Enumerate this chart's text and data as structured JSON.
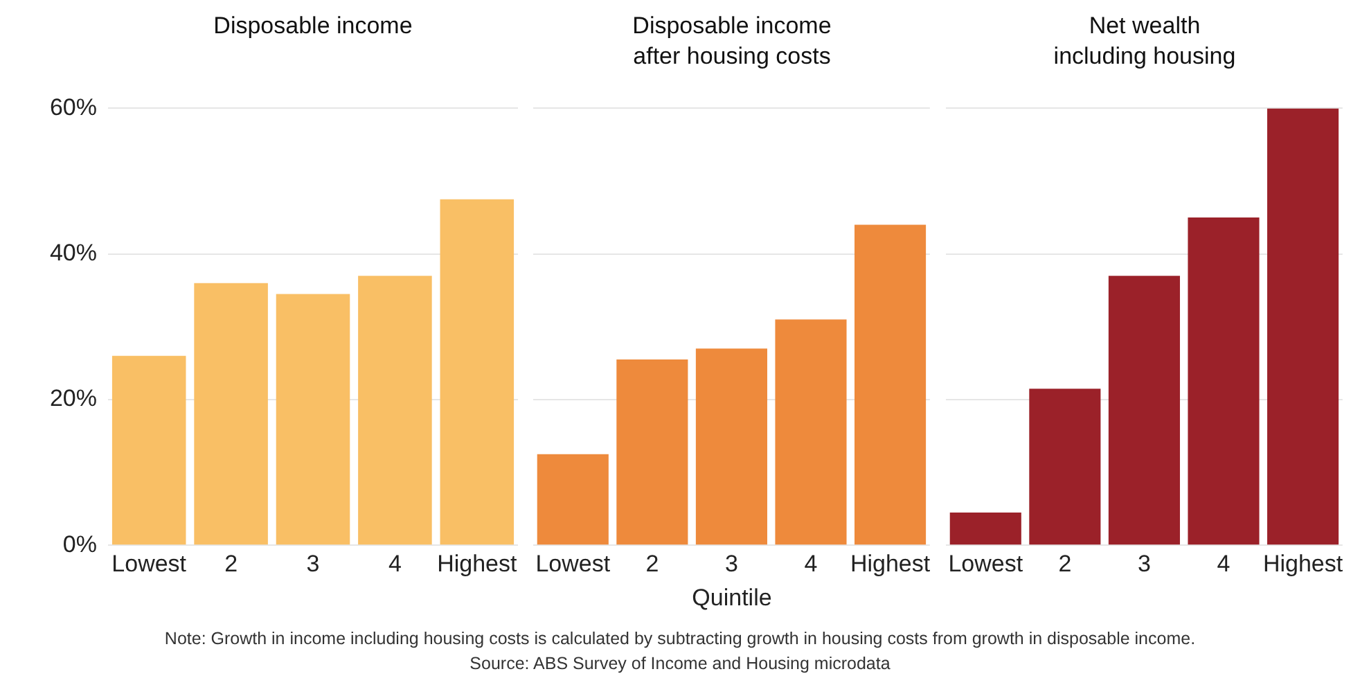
{
  "chart_data": [
    {
      "type": "bar",
      "title": "Disposable income",
      "categories": [
        "Lowest",
        "2",
        "3",
        "4",
        "Highest"
      ],
      "values": [
        26,
        36,
        34.5,
        37,
        47.5
      ],
      "color": "#f9bf65",
      "ylim": [
        0,
        60
      ],
      "yticks": [
        {
          "value": 0,
          "label": "0%"
        },
        {
          "value": 20,
          "label": "20%"
        },
        {
          "value": 40,
          "label": "40%"
        },
        {
          "value": 60,
          "label": "60%"
        }
      ],
      "grid": "y"
    },
    {
      "type": "bar",
      "title": "Disposable income\nafter housing costs",
      "xlabel": "Quintile",
      "categories": [
        "Lowest",
        "2",
        "3",
        "4",
        "Highest"
      ],
      "values": [
        12.5,
        25.5,
        27,
        31,
        44
      ],
      "color": "#ee8a3c",
      "ylim": [
        0,
        60
      ],
      "yticks": [
        {
          "value": 0,
          "label": null
        },
        {
          "value": 20,
          "label": null
        },
        {
          "value": 40,
          "label": null
        },
        {
          "value": 60,
          "label": null
        }
      ],
      "grid": "y",
      "tick_labels": "x",
      "annotations": [
        "Note: Growth in income including housing costs is calculated by subtracting growth in housing costs from growth in disposable income.",
        "Source: ABS Survey of Income and Housing microdata"
      ]
    },
    {
      "type": "bar",
      "title": "Net wealth\nincluding housing",
      "categories": [
        "Lowest",
        "2",
        "3",
        "4",
        "Highest"
      ],
      "values": [
        4.5,
        21.5,
        37,
        45,
        60
      ],
      "color": "#9b2129",
      "ylim": [
        0,
        60
      ],
      "yticks": [
        {
          "value": 0,
          "label": null
        },
        {
          "value": 20,
          "label": null
        },
        {
          "value": 40,
          "label": null
        },
        {
          "value": 60,
          "label": null
        }
      ],
      "grid": "y",
      "tick_labels": "x"
    }
  ]
}
